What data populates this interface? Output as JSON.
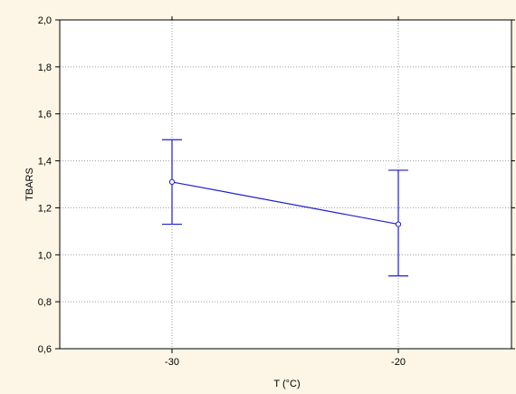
{
  "chart_data": {
    "type": "line",
    "xlabel": "T (°C)",
    "ylabel": "TBARS",
    "categories": [
      "-30",
      "-20"
    ],
    "series": [
      {
        "values": [
          1.31,
          1.13
        ],
        "error_lower": [
          1.13,
          0.91
        ],
        "error_upper": [
          1.49,
          1.36
        ]
      }
    ],
    "ylim": [
      0.6,
      2.0
    ],
    "yticks": [
      "0,6",
      "0,8",
      "1,0",
      "1,2",
      "1,4",
      "1,6",
      "1,8",
      "2,0"
    ],
    "grid": true,
    "colors": {
      "series": "#1f1fd0",
      "background": "#fdf6e6",
      "plot_background": "#ffffff",
      "grid": "#9a9a9a"
    }
  }
}
